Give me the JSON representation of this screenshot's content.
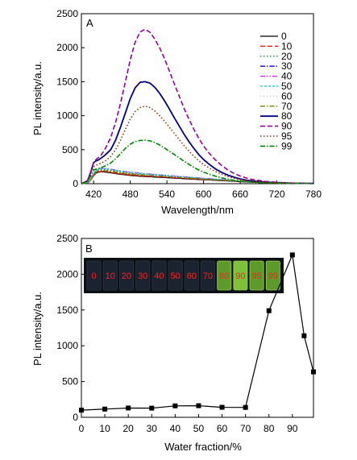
{
  "chart_data": [
    {
      "panel_label": "A",
      "type": "line",
      "xlabel": "Wavelength/nm",
      "ylabel": "PL intensity/a.u.",
      "xlim": [
        400,
        780
      ],
      "ylim": [
        0,
        2500
      ],
      "xticks": [
        420,
        480,
        540,
        600,
        660,
        720,
        780
      ],
      "yticks": [
        0,
        500,
        1000,
        1500,
        2000,
        2500
      ],
      "legend_position": "top-right",
      "x": [
        400,
        410,
        416,
        420,
        424,
        428,
        432,
        436,
        440,
        448,
        456,
        464,
        472,
        480,
        488,
        496,
        504,
        512,
        520,
        528,
        536,
        544,
        552,
        560,
        568,
        576,
        584,
        592,
        600,
        610,
        620,
        630,
        640,
        650,
        660,
        670,
        680,
        700,
        720,
        740,
        760,
        780
      ],
      "series": [
        {
          "name": "0",
          "color": "#000000",
          "dash": "solid",
          "width": 1.3,
          "values": [
            0,
            10,
            60,
            120,
            155,
            170,
            175,
            175,
            170,
            160,
            148,
            138,
            130,
            122,
            116,
            110,
            106,
            102,
            98,
            94,
            90,
            86,
            82,
            78,
            74,
            70,
            66,
            62,
            58,
            54,
            50,
            45,
            40,
            35,
            30,
            26,
            22,
            16,
            12,
            8,
            5,
            3
          ]
        },
        {
          "name": "10",
          "color": "#ff0000",
          "dash": "dash",
          "width": 1.3,
          "values": [
            0,
            10,
            60,
            125,
            160,
            175,
            180,
            180,
            176,
            166,
            154,
            144,
            136,
            128,
            122,
            116,
            112,
            108,
            104,
            100,
            96,
            92,
            88,
            84,
            80,
            76,
            72,
            68,
            64,
            59,
            55,
            50,
            45,
            40,
            35,
            30,
            25,
            18,
            13,
            9,
            6,
            3
          ]
        },
        {
          "name": "20",
          "color": "#009900",
          "dash": "dot",
          "width": 1.3,
          "values": [
            0,
            12,
            70,
            140,
            185,
            205,
            210,
            210,
            206,
            196,
            184,
            172,
            162,
            154,
            146,
            140,
            134,
            128,
            124,
            118,
            114,
            108,
            104,
            98,
            94,
            88,
            84,
            78,
            74,
            68,
            62,
            56,
            50,
            44,
            38,
            33,
            28,
            20,
            14,
            10,
            6,
            3
          ]
        },
        {
          "name": "30",
          "color": "#0000cc",
          "dash": "dashdot",
          "width": 1.3,
          "values": [
            0,
            11,
            65,
            130,
            170,
            188,
            193,
            193,
            189,
            180,
            170,
            160,
            151,
            144,
            137,
            131,
            126,
            121,
            116,
            111,
            106,
            102,
            97,
            92,
            87,
            83,
            78,
            73,
            69,
            64,
            59,
            53,
            47,
            41,
            36,
            31,
            26,
            19,
            13,
            9,
            6,
            3
          ]
        },
        {
          "name": "40",
          "color": "#ff00ff",
          "dash": "dashdotdot",
          "width": 1.3,
          "values": [
            0,
            13,
            75,
            150,
            195,
            218,
            225,
            226,
            222,
            212,
            200,
            188,
            178,
            170,
            162,
            155,
            148,
            142,
            136,
            130,
            124,
            118,
            113,
            107,
            102,
            96,
            91,
            85,
            80,
            73,
            67,
            60,
            54,
            47,
            41,
            35,
            30,
            21,
            15,
            10,
            6,
            3
          ]
        },
        {
          "name": "50",
          "color": "#00cccc",
          "dash": "shortdash",
          "width": 1.3,
          "values": [
            0,
            13,
            74,
            148,
            192,
            214,
            222,
            223,
            219,
            209,
            197,
            186,
            176,
            168,
            160,
            153,
            146,
            140,
            134,
            128,
            122,
            117,
            111,
            106,
            100,
            95,
            89,
            84,
            79,
            72,
            66,
            59,
            53,
            46,
            40,
            35,
            29,
            21,
            15,
            10,
            6,
            3
          ]
        },
        {
          "name": "60",
          "color": "#d4c800",
          "dash": "shortdot",
          "width": 1.3,
          "values": [
            0,
            11,
            66,
            132,
            172,
            190,
            196,
            196,
            192,
            183,
            172,
            162,
            153,
            146,
            139,
            133,
            127,
            122,
            117,
            112,
            107,
            102,
            97,
            92,
            88,
            83,
            78,
            74,
            69,
            64,
            58,
            52,
            46,
            41,
            35,
            30,
            26,
            19,
            13,
            9,
            6,
            3
          ]
        },
        {
          "name": "70",
          "color": "#808000",
          "dash": "dashdot",
          "width": 1.3,
          "values": [
            0,
            11,
            64,
            128,
            168,
            186,
            190,
            190,
            186,
            177,
            167,
            158,
            149,
            142,
            135,
            129,
            124,
            119,
            114,
            109,
            104,
            100,
            95,
            90,
            86,
            81,
            77,
            72,
            68,
            62,
            57,
            51,
            46,
            40,
            35,
            30,
            25,
            18,
            13,
            9,
            6,
            3
          ]
        },
        {
          "name": "80",
          "color": "#000080",
          "dash": "solid",
          "width": 1.8,
          "values": [
            0,
            40,
            190,
            310,
            335,
            350,
            375,
            400,
            430,
            500,
            640,
            830,
            1040,
            1250,
            1410,
            1490,
            1500,
            1480,
            1420,
            1330,
            1220,
            1100,
            970,
            850,
            730,
            620,
            520,
            430,
            355,
            280,
            215,
            165,
            125,
            95,
            70,
            52,
            40,
            24,
            14,
            8,
            5,
            3
          ]
        },
        {
          "name": "90",
          "color": "#990099",
          "dash": "dash",
          "width": 1.6,
          "values": [
            0,
            40,
            190,
            320,
            355,
            385,
            420,
            470,
            530,
            680,
            900,
            1180,
            1500,
            1820,
            2080,
            2230,
            2270,
            2230,
            2130,
            2000,
            1840,
            1660,
            1470,
            1290,
            1110,
            950,
            800,
            670,
            555,
            440,
            345,
            265,
            200,
            150,
            112,
            84,
            62,
            36,
            20,
            11,
            6,
            3
          ]
        },
        {
          "name": "95",
          "color": "#993300",
          "dash": "dot",
          "width": 1.6,
          "values": [
            0,
            30,
            150,
            250,
            270,
            285,
            300,
            320,
            340,
            400,
            500,
            640,
            800,
            950,
            1060,
            1120,
            1140,
            1120,
            1070,
            1000,
            920,
            830,
            740,
            650,
            560,
            480,
            405,
            340,
            282,
            225,
            177,
            137,
            104,
            78,
            58,
            44,
            33,
            20,
            12,
            7,
            4,
            2
          ]
        },
        {
          "name": "99",
          "color": "#008800",
          "dash": "dashdot",
          "width": 1.6,
          "values": [
            0,
            25,
            120,
            200,
            215,
            225,
            235,
            250,
            265,
            305,
            365,
            440,
            520,
            580,
            620,
            635,
            640,
            630,
            605,
            570,
            525,
            478,
            430,
            380,
            330,
            285,
            240,
            203,
            170,
            137,
            109,
            85,
            65,
            49,
            37,
            28,
            21,
            13,
            8,
            5,
            3,
            2
          ]
        }
      ]
    },
    {
      "panel_label": "B",
      "type": "line",
      "xlabel": "Water fraction/%",
      "ylabel": "PL intensity/a.u.",
      "xlim": [
        0,
        99
      ],
      "ylim": [
        0,
        2500
      ],
      "xticks": [
        0,
        10,
        20,
        30,
        40,
        50,
        60,
        70,
        80,
        90
      ],
      "yticks": [
        0,
        500,
        1000,
        1500,
        2000,
        2500
      ],
      "marker": "square",
      "x": [
        0,
        10,
        20,
        30,
        40,
        50,
        60,
        70,
        80,
        90,
        95,
        99
      ],
      "values": [
        100,
        115,
        130,
        128,
        160,
        162,
        140,
        138,
        1490,
        2270,
        1140,
        635
      ],
      "inset_vial_labels": [
        "0",
        "10",
        "20",
        "30",
        "40",
        "50",
        "60",
        "70",
        "80",
        "90",
        "95",
        "99"
      ]
    }
  ]
}
